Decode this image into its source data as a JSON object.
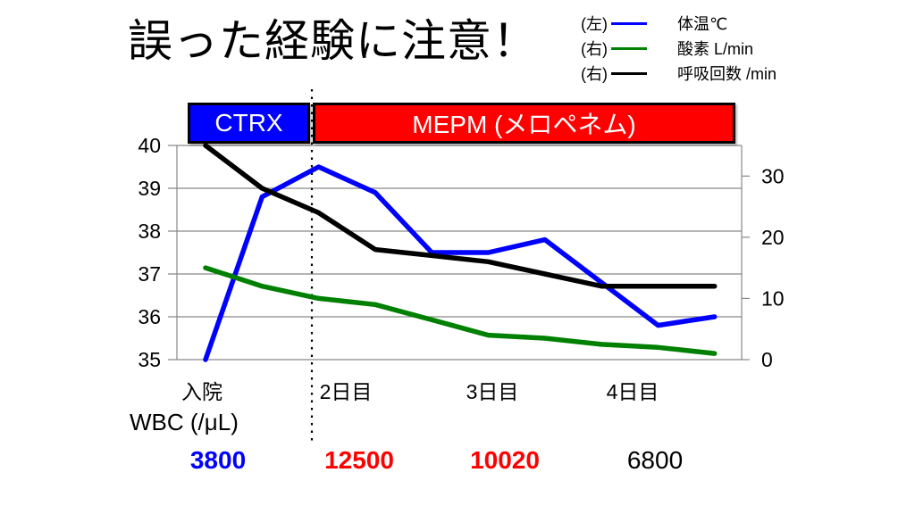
{
  "title": "誤った経験に注意！",
  "legend": {
    "rows": [
      {
        "side": "(左)",
        "label": "体温℃",
        "color": "#0000FF"
      },
      {
        "side": "(右)",
        "label": "酸素 L/min",
        "color": "#008000"
      },
      {
        "side": "(右)",
        "label": "呼吸回数 /min",
        "color": "#000000"
      }
    ]
  },
  "treatment_bars": [
    {
      "label": "CTRX",
      "color": "#0000FF",
      "text_color": "#FFFFFF"
    },
    {
      "label": "MEPM (メロペネム)",
      "color": "#FF0000",
      "text_color": "#FFFFFF"
    }
  ],
  "wbc": {
    "label": "WBC (/μL)",
    "values": [
      {
        "text": "3800",
        "color": "#0000FF",
        "bold": true
      },
      {
        "text": "12500",
        "color": "#FF0000",
        "bold": true
      },
      {
        "text": "10020",
        "color": "#FF0000",
        "bold": true
      },
      {
        "text": "6800",
        "color": "#000000",
        "bold": false
      }
    ]
  },
  "chart_data": {
    "type": "line",
    "title": "誤った経験に注意！",
    "x_labels": [
      "入院",
      "2日目",
      "3日目",
      "4日目"
    ],
    "left_axis": {
      "label": "体温℃",
      "min": 35,
      "max": 40,
      "ticks": [
        35,
        36,
        37,
        38,
        39,
        40
      ]
    },
    "right_axis": {
      "label": "酸素 L/min・呼吸回数 /min",
      "min": 0,
      "max": 35,
      "ticks": [
        0,
        10,
        20,
        30
      ]
    },
    "grid": true,
    "legend_position": "top-right",
    "divider": {
      "style": "dotted-vertical",
      "at_x_label": "2日目"
    },
    "series": [
      {
        "name": "体温℃",
        "axis": "left",
        "color": "#0000FF",
        "values": [
          35.0,
          38.8,
          39.5,
          38.9,
          37.5,
          37.5,
          37.8,
          36.8,
          35.8,
          36.0
        ]
      },
      {
        "name": "酸素 L/min",
        "axis": "right",
        "color": "#008000",
        "values": [
          15,
          12,
          10,
          9,
          6.5,
          4,
          3.5,
          2.5,
          2,
          1
        ]
      },
      {
        "name": "呼吸回数 /min",
        "axis": "right",
        "color": "#000000",
        "values": [
          35,
          28,
          24,
          18,
          17,
          16,
          14,
          12,
          12,
          12
        ]
      }
    ]
  }
}
